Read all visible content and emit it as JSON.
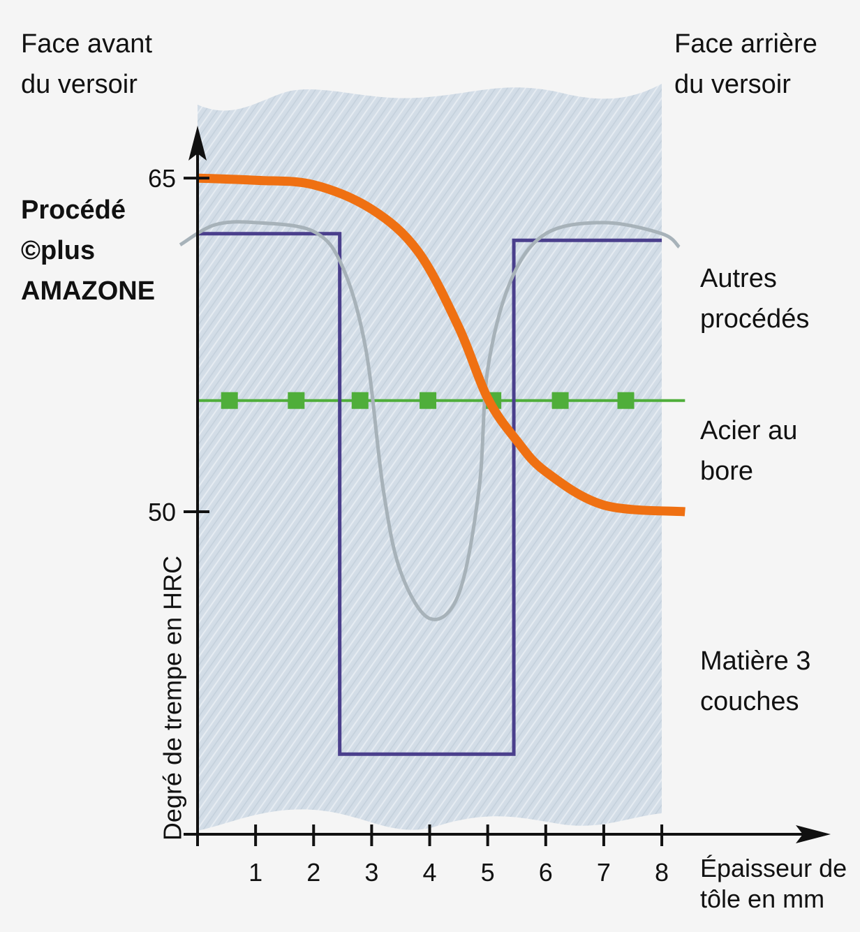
{
  "chart_data": {
    "type": "line",
    "header_left": "Face avant du versoir",
    "header_right": "Face arrière du versoir",
    "ylabel": "Degré de trempe en HRC",
    "xlabel": "Épaisseur de tôle en mm",
    "xlim": [
      0,
      10.85
    ],
    "ylim": [
      35.5,
      67.2
    ],
    "xticks": [
      1,
      2,
      3,
      4,
      5,
      6,
      7,
      8
    ],
    "yticks": [
      50,
      65
    ],
    "series": [
      {
        "name": "Procédé ©plus AMAZONE",
        "color": "#ef7012",
        "x": [
          0,
          1,
          2,
          3,
          3.8,
          4.5,
          5,
          5.5,
          6,
          7,
          8.4
        ],
        "values": [
          65,
          64.9,
          64.7,
          63.6,
          61.7,
          58.3,
          55.1,
          53.2,
          51.8,
          50.3,
          50
        ]
      },
      {
        "name": "Autres procédés",
        "color": "#a7b2b9",
        "x": [
          -0.3,
          0.3,
          1,
          2,
          2.5,
          2.9,
          3.2,
          3.5,
          4,
          4.5,
          4.85,
          5,
          5.4,
          6,
          7,
          8,
          8.3
        ],
        "values": [
          62,
          62.9,
          63,
          62.6,
          61,
          57.3,
          51,
          47.3,
          45.2,
          46.3,
          51,
          56.4,
          60.4,
          62.5,
          63,
          62.5,
          61.9
        ]
      },
      {
        "name": "Acier au bore",
        "color": "#4fae3a",
        "marker": "square",
        "x": [
          0.55,
          1.7,
          2.8,
          3.97,
          5.09,
          6.25,
          7.38
        ],
        "values": [
          55,
          55,
          55,
          55,
          55,
          55,
          55
        ]
      },
      {
        "name": "Matière 3 couches",
        "color": "#4a3f8c",
        "x": [
          0,
          2.45,
          2.45,
          5.45,
          5.45,
          8
        ],
        "values": [
          62.5,
          62.5,
          39.1,
          39.1,
          62.2,
          62.2
        ]
      }
    ]
  }
}
